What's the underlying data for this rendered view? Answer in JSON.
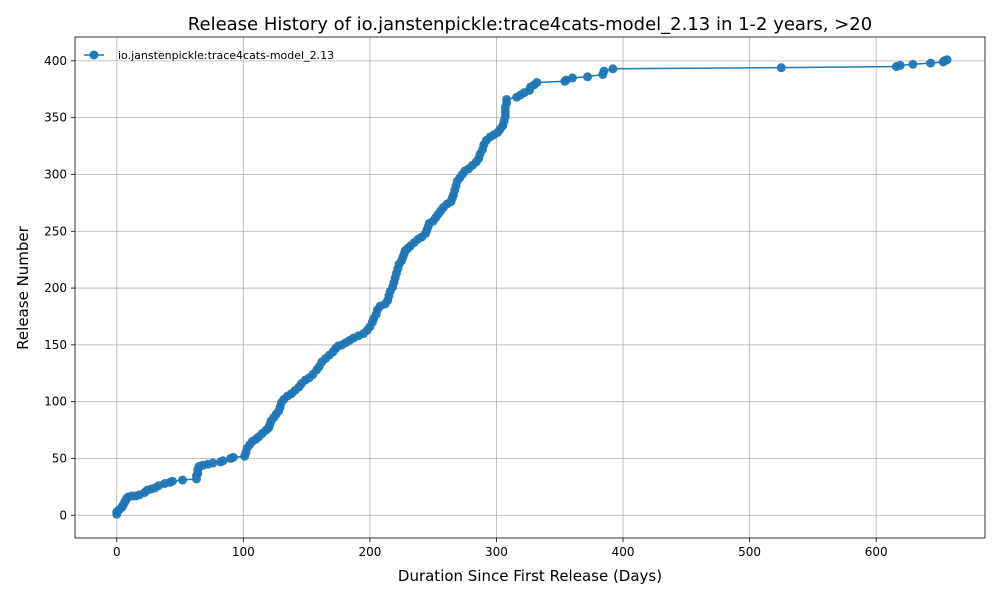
{
  "chart_data": {
    "type": "line",
    "title": "Release History of io.janstenpickle:trace4cats-model_2.13 in 1-2 years, >20",
    "xlabel": "Duration Since First Release (Days)",
    "ylabel": "Release Number",
    "xlim": [
      -33,
      686
    ],
    "ylim": [
      -20,
      421
    ],
    "xticks": [
      0,
      100,
      200,
      300,
      400,
      500,
      600
    ],
    "yticks": [
      0,
      50,
      100,
      150,
      200,
      250,
      300,
      350,
      400
    ],
    "grid": true,
    "legend_position": "top-left",
    "line_color": "#1f77b4",
    "series": [
      {
        "name": "io.janstenpickle:trace4cats-model_2.13",
        "points": [
          [
            0,
            1
          ],
          [
            0,
            3
          ],
          [
            2,
            5
          ],
          [
            4,
            7
          ],
          [
            5,
            9
          ],
          [
            6,
            11
          ],
          [
            7,
            13
          ],
          [
            8,
            15
          ],
          [
            9,
            16
          ],
          [
            12,
            17
          ],
          [
            15,
            17
          ],
          [
            18,
            18
          ],
          [
            22,
            20
          ],
          [
            24,
            22
          ],
          [
            27,
            23
          ],
          [
            30,
            24
          ],
          [
            33,
            26
          ],
          [
            38,
            28
          ],
          [
            42,
            29
          ],
          [
            44,
            30
          ],
          [
            52,
            31
          ],
          [
            63,
            32
          ],
          [
            63,
            35
          ],
          [
            64,
            37
          ],
          [
            64,
            40
          ],
          [
            65,
            43
          ],
          [
            68,
            44
          ],
          [
            72,
            45
          ],
          [
            76,
            46
          ],
          [
            82,
            47
          ],
          [
            84,
            48
          ],
          [
            90,
            50
          ],
          [
            92,
            51
          ],
          [
            101,
            52
          ],
          [
            102,
            55
          ],
          [
            103,
            59
          ],
          [
            105,
            62
          ],
          [
            107,
            65
          ],
          [
            110,
            67
          ],
          [
            112,
            69
          ],
          [
            115,
            72
          ],
          [
            118,
            75
          ],
          [
            120,
            77
          ],
          [
            121,
            80
          ],
          [
            122,
            83
          ],
          [
            124,
            86
          ],
          [
            126,
            89
          ],
          [
            128,
            92
          ],
          [
            129,
            95
          ],
          [
            130,
            99
          ],
          [
            132,
            102
          ],
          [
            135,
            105
          ],
          [
            138,
            107
          ],
          [
            141,
            110
          ],
          [
            144,
            113
          ],
          [
            146,
            116
          ],
          [
            149,
            119
          ],
          [
            152,
            121
          ],
          [
            155,
            124
          ],
          [
            158,
            128
          ],
          [
            160,
            131
          ],
          [
            162,
            135
          ],
          [
            165,
            138
          ],
          [
            168,
            141
          ],
          [
            171,
            144
          ],
          [
            173,
            147
          ],
          [
            175,
            149
          ],
          [
            178,
            150
          ],
          [
            181,
            152
          ],
          [
            184,
            154
          ],
          [
            187,
            156
          ],
          [
            191,
            158
          ],
          [
            195,
            160
          ],
          [
            198,
            163
          ],
          [
            200,
            166
          ],
          [
            202,
            170
          ],
          [
            203,
            173
          ],
          [
            205,
            177
          ],
          [
            206,
            181
          ],
          [
            208,
            184
          ],
          [
            212,
            186
          ],
          [
            214,
            189
          ],
          [
            215,
            193
          ],
          [
            216,
            197
          ],
          [
            218,
            201
          ],
          [
            219,
            205
          ],
          [
            220,
            209
          ],
          [
            221,
            213
          ],
          [
            222,
            217
          ],
          [
            223,
            221
          ],
          [
            225,
            224
          ],
          [
            226,
            227
          ],
          [
            227,
            230
          ],
          [
            228,
            233
          ],
          [
            230,
            235
          ],
          [
            232,
            237
          ],
          [
            235,
            240
          ],
          [
            238,
            243
          ],
          [
            241,
            245
          ],
          [
            244,
            248
          ],
          [
            245,
            251
          ],
          [
            246,
            254
          ],
          [
            247,
            257
          ],
          [
            250,
            259
          ],
          [
            252,
            262
          ],
          [
            254,
            265
          ],
          [
            256,
            268
          ],
          [
            258,
            271
          ],
          [
            261,
            274
          ],
          [
            264,
            276
          ],
          [
            265,
            279
          ],
          [
            266,
            282
          ],
          [
            267,
            286
          ],
          [
            268,
            290
          ],
          [
            269,
            294
          ],
          [
            271,
            297
          ],
          [
            273,
            300
          ],
          [
            275,
            303
          ],
          [
            278,
            305
          ],
          [
            281,
            308
          ],
          [
            284,
            311
          ],
          [
            286,
            314
          ],
          [
            287,
            318
          ],
          [
            289,
            322
          ],
          [
            290,
            326
          ],
          [
            292,
            330
          ],
          [
            295,
            333
          ],
          [
            298,
            335
          ],
          [
            301,
            337
          ],
          [
            303,
            340
          ],
          [
            305,
            343
          ],
          [
            306,
            347
          ],
          [
            307,
            351
          ],
          [
            307,
            355
          ],
          [
            307,
            359
          ],
          [
            308,
            363
          ],
          [
            308,
            366
          ],
          [
            316,
            368
          ],
          [
            319,
            370
          ],
          [
            322,
            372
          ],
          [
            326,
            374
          ],
          [
            327,
            377
          ],
          [
            330,
            379
          ],
          [
            332,
            381
          ],
          [
            354,
            382
          ],
          [
            355,
            383
          ],
          [
            360,
            385
          ],
          [
            372,
            386
          ],
          [
            384,
            388
          ],
          [
            385,
            391
          ],
          [
            392,
            393
          ],
          [
            525,
            394
          ],
          [
            616,
            395
          ],
          [
            619,
            396
          ],
          [
            629,
            397
          ],
          [
            643,
            398
          ],
          [
            653,
            399
          ],
          [
            654,
            400
          ],
          [
            656,
            401
          ]
        ]
      }
    ]
  }
}
